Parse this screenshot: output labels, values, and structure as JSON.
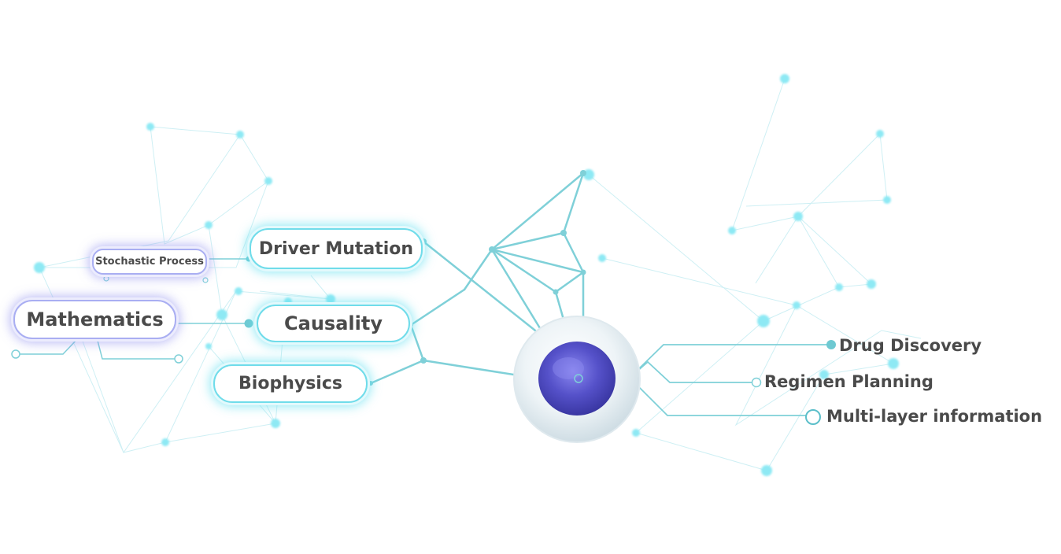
{
  "left_nodes": {
    "driver_mutation": "Driver Mutation",
    "stochastic_process": "Stochastic Process",
    "mathematics": "Mathematics",
    "causality": "Causality",
    "biophysics": "Biophysics"
  },
  "right_outputs": {
    "drug_discovery": "Drug Discovery",
    "regimen_planning": "Regimen Planning",
    "multi_layer_information": "Multi-layer information"
  },
  "colors": {
    "teal_line": "#7fd0d8",
    "network_dot": "#8ee9f4",
    "text": "#4a4a4a",
    "cell_nucleus": "#5551c9",
    "cyan_glow": "#6fdcea",
    "violet_glow": "#a9aef2"
  }
}
